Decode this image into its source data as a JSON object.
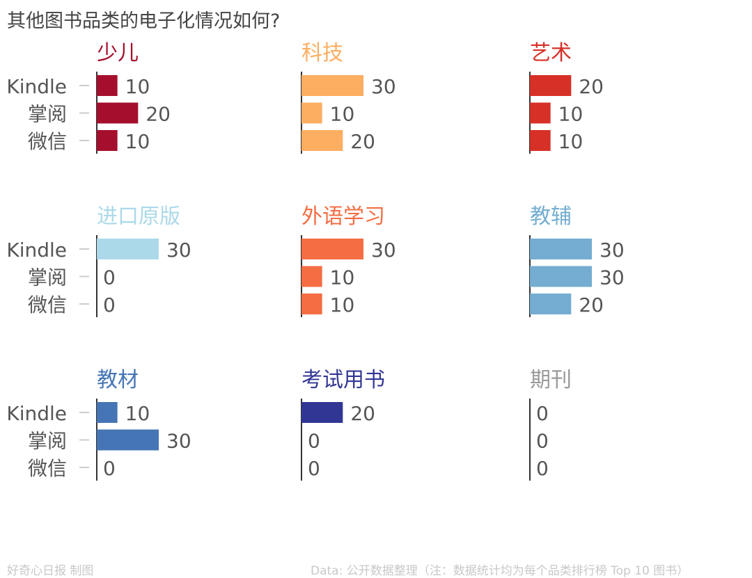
{
  "chart_data": {
    "type": "bar",
    "orientation": "horizontal",
    "layout": "small-multiples 3x3",
    "title": "其他图书品类的电子化情况如何?",
    "categories": [
      "Kindle",
      "掌阅",
      "微信"
    ],
    "xlim": [
      0,
      30
    ],
    "grid": false,
    "panels": [
      {
        "name": "少儿",
        "color": "#a50f2d",
        "values": [
          10,
          20,
          10
        ]
      },
      {
        "name": "科技",
        "color": "#fdae61",
        "values": [
          30,
          10,
          20
        ]
      },
      {
        "name": "艺术",
        "color": "#d73027",
        "values": [
          20,
          10,
          10
        ]
      },
      {
        "name": "进口原版",
        "color": "#abd9e9",
        "values": [
          30,
          0,
          0
        ]
      },
      {
        "name": "外语学习",
        "color": "#f46d43",
        "values": [
          30,
          10,
          10
        ]
      },
      {
        "name": "教辅",
        "color": "#74add1",
        "values": [
          30,
          30,
          20
        ]
      },
      {
        "name": "教材",
        "color": "#4575b4",
        "values": [
          10,
          30,
          0
        ]
      },
      {
        "name": "考试用书",
        "color": "#313695",
        "values": [
          20,
          0,
          0
        ]
      },
      {
        "name": "期刊",
        "color": "#999999",
        "values": [
          0,
          0,
          0
        ]
      }
    ]
  },
  "footer": {
    "credit": "好奇心日报 制图",
    "source": "Data: 公开数据整理（注：数据统计均为每个品类排行榜 Top 10 图书）"
  }
}
